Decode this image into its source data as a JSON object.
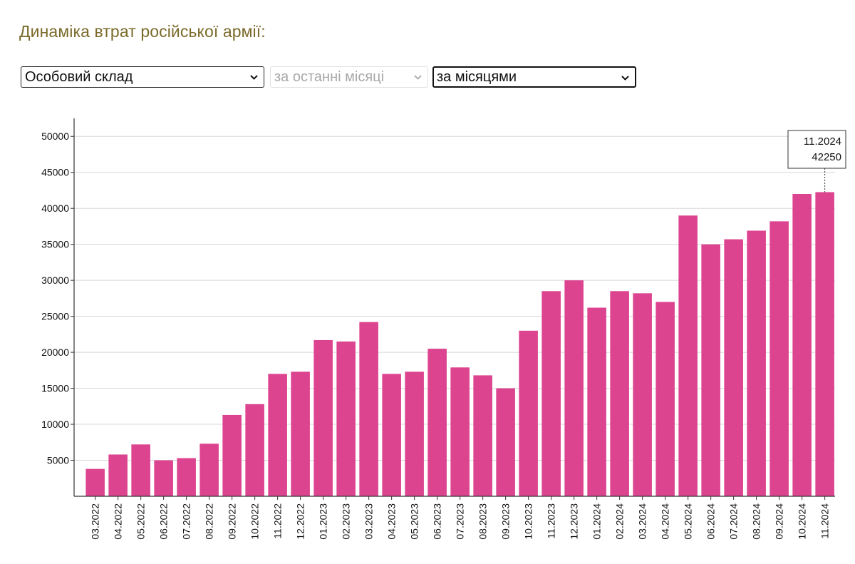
{
  "header": {
    "title": "Динаміка втрат російської армії:"
  },
  "controls": {
    "category_select": {
      "value": "Особовий склад"
    },
    "period_select": {
      "value": "за останні місяці"
    },
    "grouping_select": {
      "value": "за місяцями"
    }
  },
  "colors": {
    "bar": "#dd4490",
    "title": "#7b6a2a",
    "grid": "#d8d8d8",
    "axis": "#333333"
  },
  "chart_data": {
    "type": "bar",
    "title": "",
    "xlabel": "",
    "ylabel": "",
    "ylim": [
      0,
      52500
    ],
    "grid": true,
    "yticks": [
      5000,
      10000,
      15000,
      20000,
      25000,
      30000,
      35000,
      40000,
      45000,
      50000
    ],
    "categories": [
      "03.2022",
      "04.2022",
      "05.2022",
      "06.2022",
      "07.2022",
      "08.2022",
      "09.2022",
      "10.2022",
      "11.2022",
      "12.2022",
      "01.2023",
      "02.2023",
      "03.2023",
      "04.2023",
      "05.2023",
      "06.2023",
      "07.2023",
      "08.2023",
      "09.2023",
      "10.2023",
      "11.2023",
      "12.2023",
      "01.2024",
      "02.2024",
      "03.2024",
      "04.2024",
      "05.2024",
      "06.2024",
      "07.2024",
      "08.2024",
      "09.2024",
      "10.2024",
      "11.2024"
    ],
    "values": [
      3800,
      5800,
      7200,
      5000,
      5300,
      7300,
      11300,
      12800,
      17000,
      17300,
      21700,
      21500,
      24200,
      17000,
      17300,
      20500,
      17900,
      16800,
      15000,
      23000,
      28500,
      30000,
      26200,
      28500,
      28200,
      27000,
      39000,
      35000,
      35700,
      36900,
      38200,
      42000,
      42250
    ],
    "tooltip": {
      "label": "11.2024",
      "value": "42250"
    }
  }
}
